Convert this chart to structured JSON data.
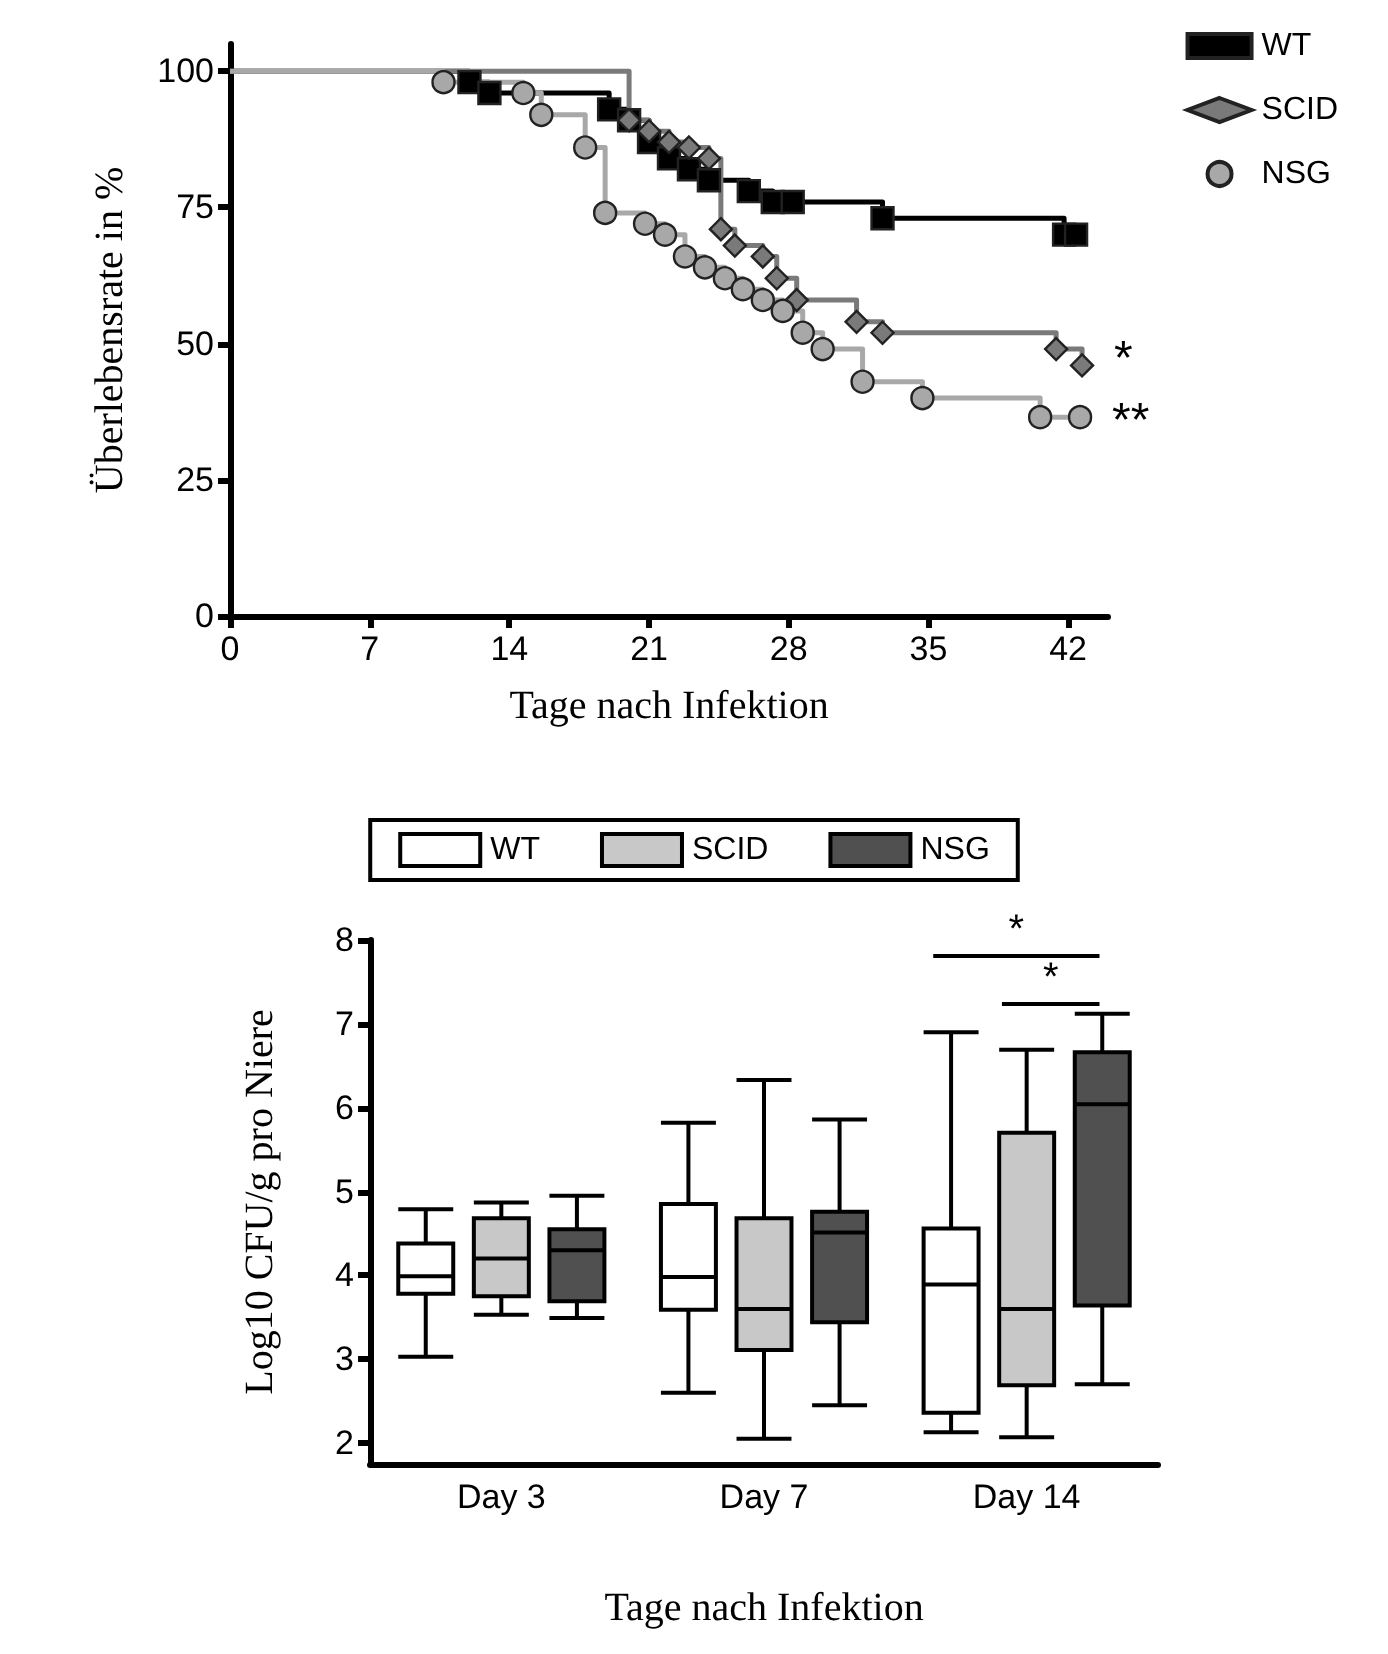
{
  "chart_data": [
    {
      "type": "step",
      "xlabel": "Tage nach Infektion",
      "ylabel": "Überlebensrate in %",
      "xlim": [
        0,
        44
      ],
      "xticks": [
        0,
        7,
        14,
        21,
        28,
        35,
        42
      ],
      "ylim": [
        0,
        105
      ],
      "yticks": [
        0,
        25,
        50,
        75,
        100
      ],
      "grid": false,
      "legend": "top right",
      "series": [
        {
          "name": "WT",
          "color": "#000000",
          "marker": "square",
          "x": [
            0,
            12,
            13,
            19,
            20,
            21,
            22,
            23,
            24,
            26,
            27.2,
            28.2,
            32.7,
            41.8,
            42.4
          ],
          "values": [
            100,
            98,
            96,
            93,
            91,
            87,
            84,
            82,
            80,
            78,
            76,
            76,
            73,
            70,
            70
          ]
        },
        {
          "name": "SCID",
          "color": "#7a7a7a",
          "marker": "diamond",
          "x": [
            0,
            20,
            21,
            22,
            23,
            24,
            24.6,
            25.3,
            26.7,
            27.4,
            28.4,
            31.4,
            32.7,
            41.4,
            42.7
          ],
          "values": [
            100,
            91,
            89,
            87,
            86,
            84,
            71,
            68,
            66,
            62,
            58,
            54,
            52,
            49,
            46
          ]
        },
        {
          "name": "NSG",
          "color": "#a8a8a8",
          "marker": "circle",
          "x": [
            0,
            10.7,
            14.7,
            15.6,
            17.8,
            18.8,
            20.8,
            21.8,
            22.8,
            23.8,
            24.8,
            25.7,
            26.7,
            27.7,
            28.7,
            29.7,
            31.7,
            34.7,
            40.6,
            42.6
          ],
          "values": [
            100,
            98,
            96,
            92,
            86,
            74,
            72,
            70,
            66,
            64,
            62,
            60,
            58,
            56,
            52,
            49,
            43,
            40,
            36.5,
            36.5
          ]
        }
      ],
      "annotations": [
        {
          "text": "*",
          "x": 42.7,
          "y": 48
        },
        {
          "text": "**",
          "x": 42.6,
          "y": 36.5
        }
      ]
    },
    {
      "type": "box",
      "categories": [
        "Day 3",
        "Day 7",
        "Day 14"
      ],
      "xlabel": "Tage nach Infektion",
      "ylabel": "Log10 CFU/g pro Niere",
      "ylim": [
        1.75,
        8
      ],
      "yticks": [
        2,
        3,
        4,
        5,
        6,
        7,
        8
      ],
      "grid": false,
      "legend": "top",
      "series": [
        {
          "name": "WT",
          "color": "#ffffff",
          "boxes": [
            {
              "low": 3.03,
              "q1": 3.78,
              "median": 3.99,
              "q3": 4.38,
              "high": 4.79
            },
            {
              "low": 2.6,
              "q1": 3.59,
              "median": 3.98,
              "q3": 4.85,
              "high": 5.82
            },
            {
              "low": 2.13,
              "q1": 2.36,
              "median": 3.89,
              "q3": 4.56,
              "high": 6.9
            }
          ]
        },
        {
          "name": "SCID",
          "color": "#c8c8c8",
          "boxes": [
            {
              "low": 3.53,
              "q1": 3.75,
              "median": 4.2,
              "q3": 4.68,
              "high": 4.87
            },
            {
              "low": 2.05,
              "q1": 3.11,
              "median": 3.6,
              "q3": 4.68,
              "high": 6.33
            },
            {
              "low": 2.07,
              "q1": 2.69,
              "median": 3.6,
              "q3": 5.7,
              "high": 6.69
            }
          ]
        },
        {
          "name": "NSG",
          "color": "#505050",
          "boxes": [
            {
              "low": 3.49,
              "q1": 3.69,
              "median": 4.3,
              "q3": 4.55,
              "high": 4.95
            },
            {
              "low": 2.45,
              "q1": 3.44,
              "median": 4.51,
              "q3": 4.76,
              "high": 5.86
            },
            {
              "low": 2.7,
              "q1": 3.64,
              "median": 6.04,
              "q3": 6.66,
              "high": 7.12
            }
          ]
        }
      ],
      "annotations": [
        "*",
        "*"
      ]
    }
  ]
}
